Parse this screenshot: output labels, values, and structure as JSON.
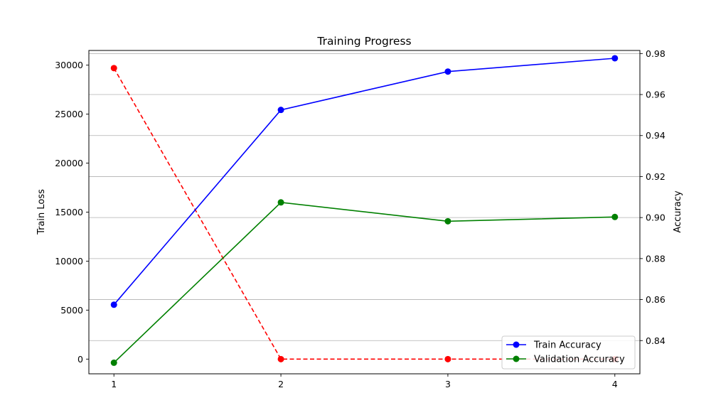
{
  "chart_data": {
    "type": "line",
    "title": "Training Progress",
    "xlabel": "",
    "ylabel_left": "Train Loss",
    "ylabel_right": "Accuracy",
    "x": [
      1,
      2,
      3,
      4
    ],
    "x_ticks": [
      "1",
      "2",
      "3",
      "4"
    ],
    "ylim_left": [
      -1500,
      31500
    ],
    "yticks_left": [
      0,
      5000,
      10000,
      15000,
      20000,
      25000,
      30000
    ],
    "ylim_right": [
      0.8238,
      0.9815
    ],
    "yticks_right": [
      "0.84",
      "0.86",
      "0.88",
      "0.90",
      "0.92",
      "0.94",
      "0.96",
      "0.98"
    ],
    "grid": "horizontal (right axis)",
    "legend_position": "lower-right",
    "series": [
      {
        "name": "Train Loss",
        "axis": "left",
        "color": "#ff0000",
        "style": "dashed",
        "marker": "circle",
        "values": [
          29700,
          0,
          0,
          0
        ],
        "in_legend": false
      },
      {
        "name": "Train Accuracy",
        "axis": "right",
        "color": "#0000ff",
        "style": "solid",
        "marker": "circle",
        "values": [
          0.8575,
          0.9525,
          0.9712,
          0.9777
        ],
        "in_legend": true
      },
      {
        "name": "Validation Accuracy",
        "axis": "right",
        "color": "#008000",
        "style": "solid",
        "marker": "circle",
        "values": [
          0.8292,
          0.9074,
          0.8982,
          0.9003
        ],
        "in_legend": true
      }
    ]
  }
}
